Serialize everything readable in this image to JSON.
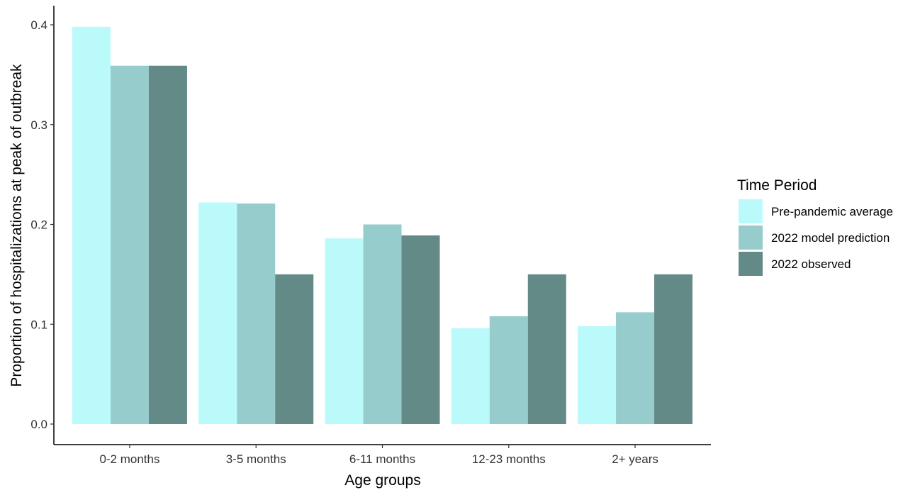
{
  "chart_data": {
    "type": "bar",
    "title": "",
    "xlabel": "Age groups",
    "ylabel": "Proportion of hospitalizations at peak of outbreak",
    "categories": [
      "0-2 months",
      "3-5 months",
      "6-11 months",
      "12-23 months",
      "2+ years"
    ],
    "series": [
      {
        "name": "Pre-pandemic average",
        "color": "#bbfafb",
        "values": [
          0.398,
          0.222,
          0.186,
          0.096,
          0.098
        ]
      },
      {
        "name": "2022 model prediction",
        "color": "#96cdcc",
        "values": [
          0.359,
          0.221,
          0.2,
          0.108,
          0.112
        ]
      },
      {
        "name": "2022 observed",
        "color": "#648a88",
        "values": [
          0.359,
          0.15,
          0.189,
          0.15,
          0.15
        ]
      }
    ],
    "ylim": [
      0,
      0.4
    ],
    "yticks": [
      0.0,
      0.1,
      0.2,
      0.3,
      0.4
    ],
    "ytick_labels": [
      "0.0",
      "0.1",
      "0.2",
      "0.3",
      "0.4"
    ],
    "grid": false,
    "legend": {
      "title": "Time Period",
      "position": "right"
    }
  }
}
